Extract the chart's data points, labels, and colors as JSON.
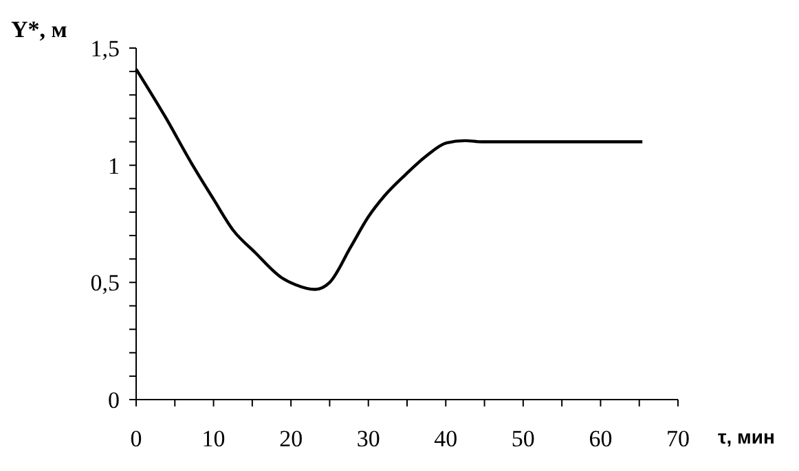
{
  "chart_data": {
    "type": "line",
    "ylabel": "Y*, м",
    "xlabel": "τ, мин",
    "x": [
      0,
      3.7,
      7.3,
      10,
      12.6,
      15.3,
      18.8,
      20.6,
      23.1,
      25,
      27.7,
      30,
      32.1,
      34.8,
      37.5,
      40.1,
      42.5,
      44.6,
      50,
      55,
      60,
      65.4
    ],
    "series": [
      {
        "color": "#000000",
        "values": [
          1.41,
          1.21,
          1.0,
          0.855,
          0.72,
          0.63,
          0.52,
          0.49,
          0.47,
          0.5,
          0.65,
          0.78,
          0.87,
          0.96,
          1.04,
          1.095,
          1.105,
          1.1,
          1.1,
          1.1,
          1.1,
          1.1
        ]
      }
    ],
    "xlim": [
      0,
      70
    ],
    "xticks": [
      0,
      {
        "value": 5,
        "label": null
      },
      10,
      {
        "value": 15,
        "label": null
      },
      20,
      {
        "value": 25,
        "label": null
      },
      30,
      {
        "value": 35,
        "label": null
      },
      40,
      {
        "value": 45,
        "label": null
      },
      50,
      {
        "value": 55,
        "label": null
      },
      60,
      {
        "value": 65,
        "label": null
      },
      70
    ],
    "ylim": [
      0,
      1.5
    ],
    "yticks": [
      0,
      {
        "value": 0.1,
        "label": null
      },
      {
        "value": 0.2,
        "label": null
      },
      {
        "value": 0.3,
        "label": null
      },
      {
        "value": 0.4,
        "label": null
      },
      {
        "value": 0.5,
        "label": "0,5"
      },
      {
        "value": 0.6,
        "label": null
      },
      {
        "value": 0.7,
        "label": null
      },
      {
        "value": 0.8,
        "label": null
      },
      {
        "value": 0.9,
        "label": null
      },
      1,
      {
        "value": 1.1,
        "label": null
      },
      {
        "value": 1.2,
        "label": null
      },
      {
        "value": 1.3,
        "label": null
      },
      {
        "value": 1.4,
        "label": null
      },
      {
        "value": 1.5,
        "label": "1,5"
      }
    ],
    "grid": false,
    "marker": "none",
    "line_style": "solid"
  }
}
